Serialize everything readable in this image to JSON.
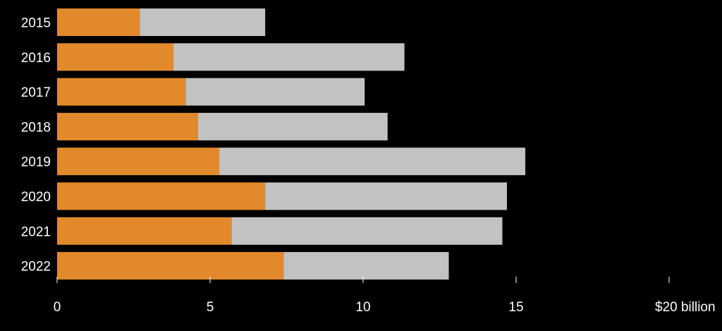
{
  "chart_data": {
    "type": "bar",
    "orientation": "horizontal",
    "stacked": true,
    "categories": [
      "2015",
      "2016",
      "2017",
      "2018",
      "2019",
      "2020",
      "2021",
      "2022"
    ],
    "series": [
      {
        "values": [
          2.7,
          3.8,
          4.2,
          4.6,
          5.3,
          6.8,
          5.7,
          7.4
        ]
      },
      {
        "values": [
          4.1,
          7.55,
          5.85,
          6.2,
          10.0,
          7.9,
          8.85,
          5.4
        ]
      }
    ],
    "xlim": [
      0,
      20
    ],
    "xticks": [
      {
        "value": 0,
        "label": "0"
      },
      {
        "value": 5,
        "label": "5"
      },
      {
        "value": 10,
        "label": "10"
      },
      {
        "value": 15,
        "label": "15"
      },
      {
        "value": 20,
        "label": "$20 billion"
      }
    ],
    "grid": false,
    "colors": {
      "background": "#000000",
      "series": [
        "#e28a2b",
        "#c2c2c2"
      ],
      "text": "#ffffff",
      "tick": "#ffffff"
    }
  }
}
